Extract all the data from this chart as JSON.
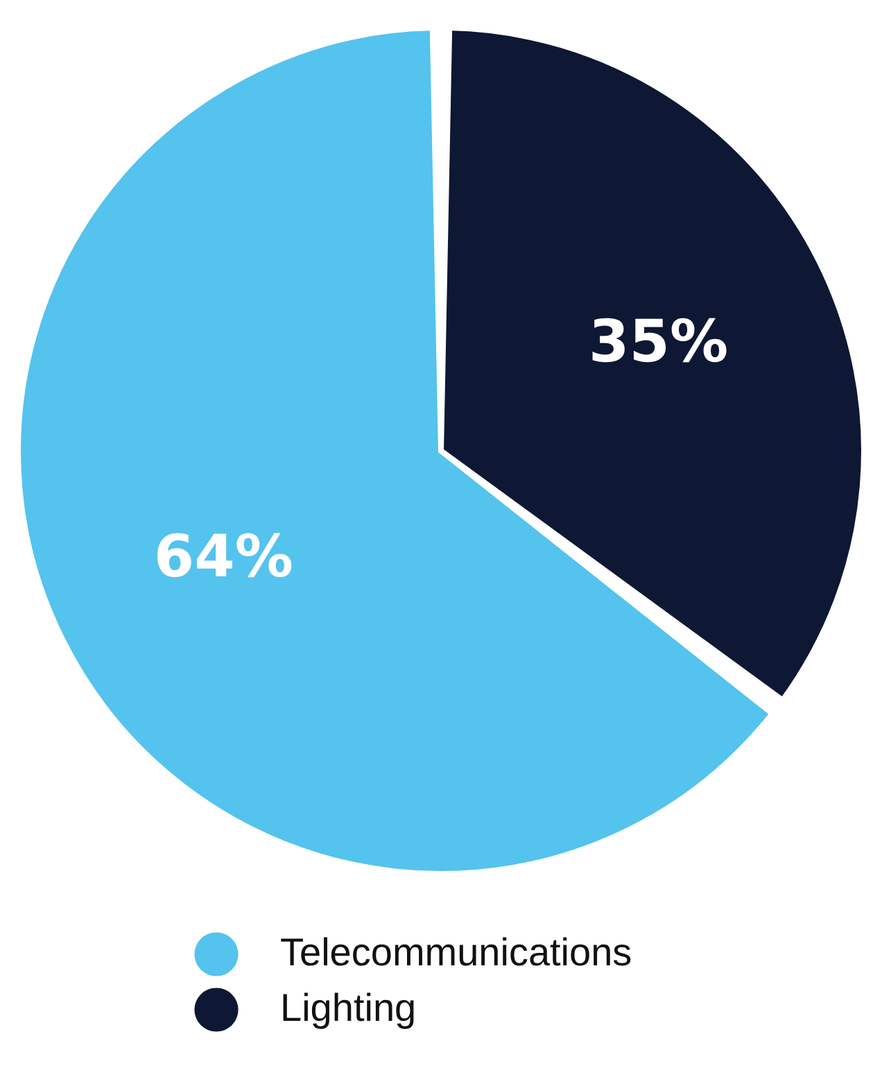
{
  "chart_data": {
    "type": "pie",
    "categories": [
      "Telecommunications",
      "Lighting"
    ],
    "values": [
      64,
      35
    ],
    "colors": [
      "#54c3ee",
      "#0e1734"
    ],
    "value_labels": [
      "64%",
      "35%"
    ],
    "legend": "bottom"
  }
}
